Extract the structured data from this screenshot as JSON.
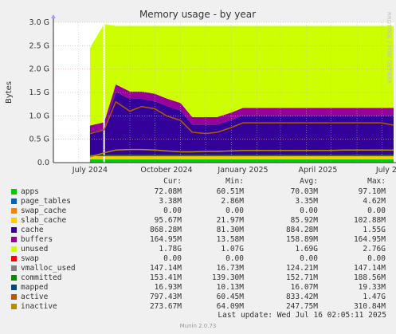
{
  "title": "Memory usage - by year",
  "ylabel": "Bytes",
  "side_text": "RRDTOOL / TOBI OETIKER",
  "legend_headers": {
    "cur": "Cur:",
    "min": "Min:",
    "avg": "Avg:",
    "max": "Max:"
  },
  "legend": [
    {
      "name": "apps",
      "color": "#00cc00",
      "cur": "72.08M",
      "min": "60.51M",
      "avg": "70.03M",
      "max": "97.10M"
    },
    {
      "name": "page_tables",
      "color": "#0066b3",
      "cur": "3.38M",
      "min": "2.86M",
      "avg": "3.35M",
      "max": "4.62M"
    },
    {
      "name": "swap_cache",
      "color": "#ff8000",
      "cur": "0.00",
      "min": "0.00",
      "avg": "0.00",
      "max": "0.00"
    },
    {
      "name": "slab_cache",
      "color": "#ffcc00",
      "cur": "95.67M",
      "min": "21.97M",
      "avg": "85.92M",
      "max": "102.88M"
    },
    {
      "name": "cache",
      "color": "#330099",
      "cur": "868.28M",
      "min": "81.30M",
      "avg": "884.28M",
      "max": "1.55G"
    },
    {
      "name": "buffers",
      "color": "#990099",
      "cur": "164.95M",
      "min": "13.58M",
      "avg": "158.89M",
      "max": "164.95M"
    },
    {
      "name": "unused",
      "color": "#ccff00",
      "cur": "1.78G",
      "min": "1.07G",
      "avg": "1.69G",
      "max": "2.76G"
    },
    {
      "name": "swap",
      "color": "#ff0000",
      "cur": "0.00",
      "min": "0.00",
      "avg": "0.00",
      "max": "0.00"
    },
    {
      "name": "vmalloc_used",
      "color": "#808080",
      "cur": "147.14M",
      "min": "16.73M",
      "avg": "124.21M",
      "max": "147.14M"
    },
    {
      "name": "committed",
      "color": "#008f00",
      "cur": "153.41M",
      "min": "139.30M",
      "avg": "152.71M",
      "max": "188.56M"
    },
    {
      "name": "mapped",
      "color": "#00487d",
      "cur": "16.93M",
      "min": "10.13M",
      "avg": "16.07M",
      "max": "19.33M"
    },
    {
      "name": "active",
      "color": "#b35a00",
      "cur": "797.43M",
      "min": "60.45M",
      "avg": "833.42M",
      "max": "1.47G"
    },
    {
      "name": "inactive",
      "color": "#b38f00",
      "cur": "273.67M",
      "min": "64.09M",
      "avg": "247.75M",
      "max": "310.84M"
    }
  ],
  "last_update": "Last update: Wed Jul 16 02:05:11 2025",
  "footer": "Munin 2.0.73",
  "chart_data": {
    "type": "area",
    "title": "Memory usage - by year",
    "ylabel": "Bytes",
    "xlabel": "",
    "y_unit": "G",
    "ylim": [
      0,
      3.0
    ],
    "y_ticks": [
      "0.0",
      "0.5 G",
      "1.0 G",
      "1.5 G",
      "2.0 G",
      "2.5 G",
      "3.0 G"
    ],
    "x_ticks": [
      "July 2024",
      "October 2024",
      "January 2025",
      "April 2025",
      "July 2025"
    ],
    "grid": true,
    "gap": [
      "2024-07-31",
      "2024-08-01"
    ],
    "x": [
      "2024-07-15",
      "2024-08-01",
      "2024-08-15",
      "2024-09-01",
      "2024-09-15",
      "2024-10-01",
      "2024-10-15",
      "2024-11-01",
      "2024-11-15",
      "2024-12-01",
      "2024-12-15",
      "2025-01-01",
      "2025-01-15",
      "2025-02-01",
      "2025-02-15",
      "2025-03-01",
      "2025-03-15",
      "2025-04-01",
      "2025-04-15",
      "2025-05-01",
      "2025-05-15",
      "2025-06-01",
      "2025-06-15",
      "2025-07-01",
      "2025-07-15"
    ],
    "series": [
      {
        "name": "apps",
        "color": "#00cc00",
        "values": [
          0.07,
          0.07,
          0.07,
          0.07,
          0.07,
          0.07,
          0.07,
          0.07,
          0.07,
          0.07,
          0.07,
          0.07,
          0.07,
          0.07,
          0.07,
          0.07,
          0.07,
          0.07,
          0.07,
          0.07,
          0.07,
          0.07,
          0.07,
          0.07,
          0.07
        ]
      },
      {
        "name": "page_tables",
        "color": "#0066b3",
        "values": [
          0.003,
          0.003,
          0.003,
          0.003,
          0.003,
          0.003,
          0.003,
          0.003,
          0.003,
          0.003,
          0.003,
          0.003,
          0.003,
          0.003,
          0.003,
          0.003,
          0.003,
          0.003,
          0.003,
          0.003,
          0.003,
          0.003,
          0.003,
          0.003,
          0.003
        ]
      },
      {
        "name": "slab_cache",
        "color": "#ffcc00",
        "values": [
          0.09,
          0.09,
          0.09,
          0.09,
          0.09,
          0.09,
          0.09,
          0.09,
          0.09,
          0.09,
          0.09,
          0.09,
          0.09,
          0.09,
          0.09,
          0.09,
          0.09,
          0.09,
          0.09,
          0.09,
          0.09,
          0.09,
          0.09,
          0.09,
          0.09
        ]
      },
      {
        "name": "cache",
        "color": "#330099",
        "values": [
          0.5,
          0.55,
          1.35,
          1.2,
          1.2,
          1.15,
          1.05,
          0.95,
          0.65,
          0.65,
          0.65,
          0.75,
          0.85,
          0.85,
          0.85,
          0.85,
          0.85,
          0.85,
          0.85,
          0.85,
          0.85,
          0.85,
          0.85,
          0.85,
          0.85
        ]
      },
      {
        "name": "buffers",
        "color": "#990099",
        "values": [
          0.13,
          0.15,
          0.16,
          0.16,
          0.16,
          0.16,
          0.16,
          0.16,
          0.16,
          0.16,
          0.16,
          0.16,
          0.16,
          0.16,
          0.16,
          0.16,
          0.16,
          0.16,
          0.16,
          0.16,
          0.16,
          0.16,
          0.16,
          0.16,
          0.16
        ]
      },
      {
        "name": "unused",
        "color": "#ccff00",
        "values": [
          1.66,
          2.1,
          1.25,
          1.4,
          1.4,
          1.45,
          1.55,
          1.65,
          1.95,
          1.95,
          1.95,
          1.85,
          1.75,
          1.75,
          1.75,
          1.75,
          1.75,
          1.75,
          1.75,
          1.75,
          1.75,
          1.75,
          1.75,
          1.75,
          1.75
        ]
      }
    ],
    "lines": [
      {
        "name": "committed",
        "color": "#008f00",
        "values": [
          0.15,
          0.15,
          0.15,
          0.15,
          0.15,
          0.15,
          0.15,
          0.15,
          0.15,
          0.15,
          0.15,
          0.15,
          0.15,
          0.15,
          0.15,
          0.15,
          0.15,
          0.15,
          0.15,
          0.15,
          0.15,
          0.15,
          0.15,
          0.15,
          0.15
        ]
      },
      {
        "name": "active",
        "color": "#b35a00",
        "values": [
          0.62,
          0.7,
          1.3,
          1.1,
          1.2,
          1.15,
          1.0,
          0.9,
          0.65,
          0.62,
          0.65,
          0.75,
          0.85,
          0.85,
          0.85,
          0.85,
          0.85,
          0.85,
          0.85,
          0.85,
          0.85,
          0.85,
          0.85,
          0.85,
          0.8
        ]
      },
      {
        "name": "inactive",
        "color": "#b38f00",
        "values": [
          0.12,
          0.21,
          0.27,
          0.28,
          0.28,
          0.27,
          0.25,
          0.23,
          0.23,
          0.24,
          0.24,
          0.25,
          0.26,
          0.26,
          0.26,
          0.26,
          0.26,
          0.26,
          0.26,
          0.26,
          0.27,
          0.27,
          0.27,
          0.27,
          0.27
        ]
      }
    ]
  }
}
